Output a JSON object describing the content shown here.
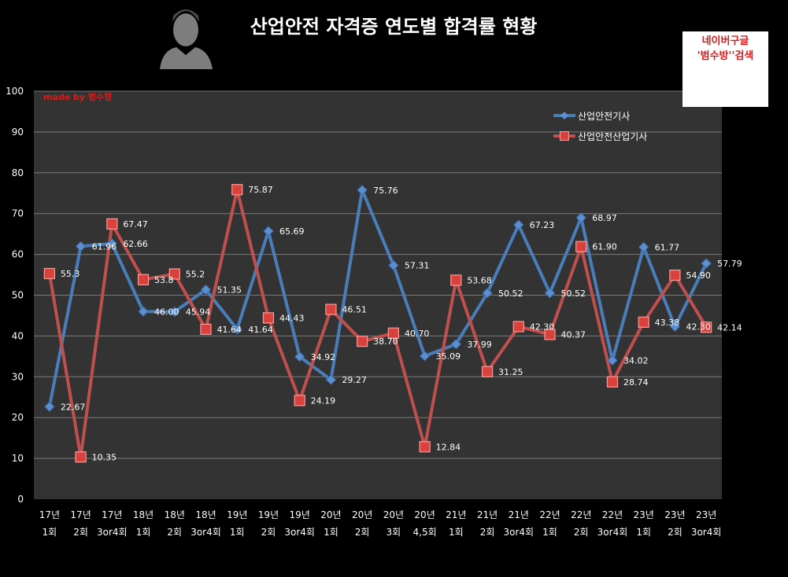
{
  "title": "산업안전 자격증 연도별 합격률 현황",
  "made_by": "made by  범수형",
  "note": {
    "line1": "네이버구글",
    "line2": "'범수방''검색"
  },
  "colors": {
    "background": "#000000",
    "plot_background": "#333333",
    "gridline": "#7a7a7a",
    "series_1": "#4a7ebb",
    "series_2": "#c0504d"
  },
  "icons": {
    "avatar": "person-silhouette-icon"
  },
  "chart_data": {
    "type": "line",
    "title": "산업안전 자격증 연도별 합격률 현황",
    "ylim": [
      0,
      100
    ],
    "yticks": [
      0,
      10,
      20,
      30,
      40,
      50,
      60,
      70,
      80,
      90,
      100
    ],
    "grid": true,
    "legend_position": "top-right",
    "categories": [
      [
        "17년",
        "1회"
      ],
      [
        "17년",
        "2회"
      ],
      [
        "17년",
        "3or4회"
      ],
      [
        "18년",
        "1회"
      ],
      [
        "18년",
        "2회"
      ],
      [
        "18년",
        "3or4회"
      ],
      [
        "19년",
        "1회"
      ],
      [
        "19년",
        "2회"
      ],
      [
        "19년",
        "3or4회"
      ],
      [
        "20년",
        "1회"
      ],
      [
        "20년",
        "2회"
      ],
      [
        "20년",
        "3회"
      ],
      [
        "20년",
        "4,5회"
      ],
      [
        "21년",
        "1회"
      ],
      [
        "21년",
        "2회"
      ],
      [
        "21년",
        "3or4회"
      ],
      [
        "22년",
        "1회"
      ],
      [
        "22년",
        "2회"
      ],
      [
        "22년",
        "3or4회"
      ],
      [
        "23년",
        "1회"
      ],
      [
        "23년",
        "2회"
      ],
      [
        "23년",
        "3or4회"
      ]
    ],
    "series": [
      {
        "name": "산업안전기사",
        "values": [
          22.67,
          61.96,
          62.66,
          46.0,
          45.94,
          51.35,
          41.64,
          65.69,
          34.92,
          29.27,
          75.76,
          57.31,
          35.09,
          37.99,
          50.52,
          67.23,
          50.52,
          68.97,
          34.02,
          61.77,
          42.3,
          57.79
        ],
        "labels": [
          "22.67",
          "61.96",
          "62.66",
          "46.00",
          "45.94",
          "51.35",
          "41.64",
          "65.69",
          "34.92",
          "29.27",
          "75.76",
          "57.31",
          "35.09",
          "37.99",
          "50.52",
          "67.23",
          "50.52",
          "68.97",
          "34.02",
          "61.77",
          "42.30",
          "57.79"
        ]
      },
      {
        "name": "산업안전산업기사",
        "values": [
          55.3,
          10.35,
          67.47,
          53.8,
          55.2,
          41.64,
          75.87,
          44.43,
          24.19,
          46.51,
          38.7,
          40.7,
          12.84,
          53.68,
          31.25,
          42.3,
          40.37,
          61.9,
          28.74,
          43.38,
          54.9,
          42.14
        ],
        "labels": [
          "55.3",
          "10.35",
          "67.47",
          "53.8",
          "55.2",
          "41.64",
          "75.87",
          "44.43",
          "24.19",
          "46.51",
          "38.70",
          "40.70",
          "12.84",
          "53.68",
          "31.25",
          "42.30",
          "40.37",
          "61.90",
          "28.74",
          "43.38",
          "54.90",
          "42.14"
        ]
      }
    ]
  }
}
